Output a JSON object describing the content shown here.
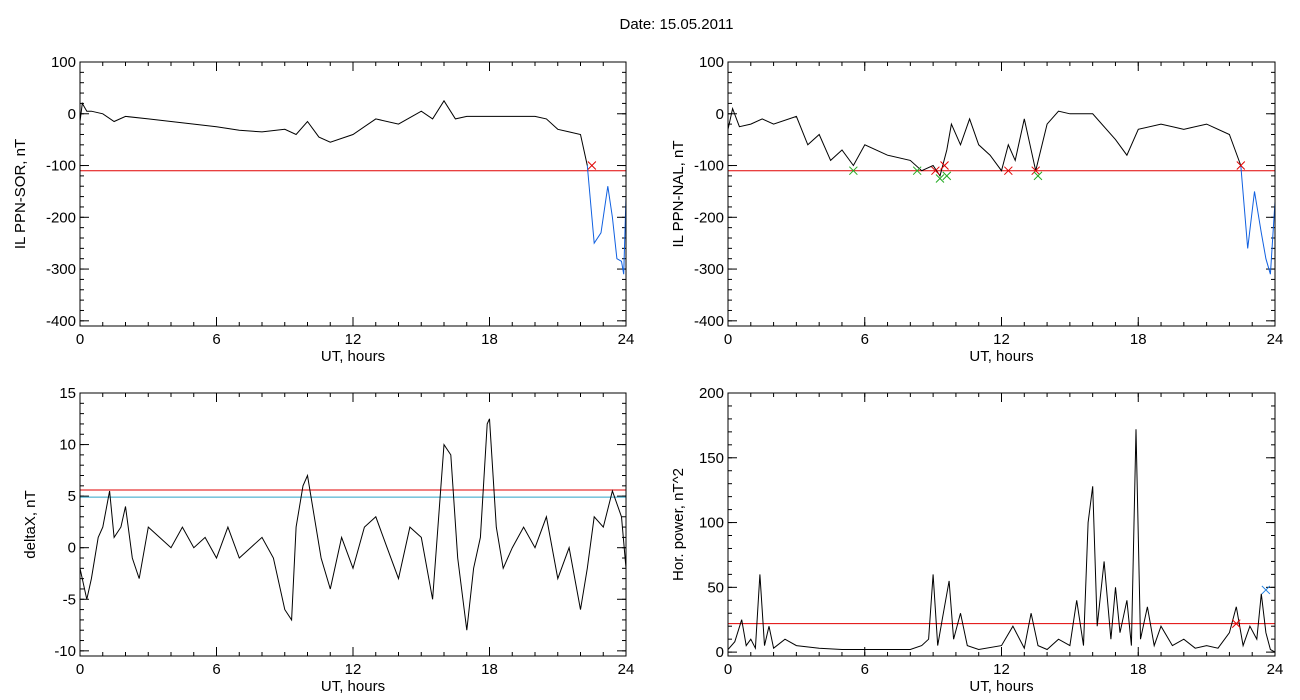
{
  "page_title": "Date:  15.05.2011",
  "colors": {
    "trace": "#000000",
    "threshold_red": "#e00000",
    "threshold_blue": "#2ea3c8",
    "storm_blue": "#1060e0",
    "marker_red": "#e00000",
    "marker_green": "#22aa22",
    "marker_blue": "#2080e0"
  },
  "chart_data": [
    {
      "id": "p1",
      "type": "line",
      "xlabel": "UT, hours",
      "ylabel": "IL PPN-SOR, nT",
      "xlim": [
        0,
        24
      ],
      "ylim": [
        -410,
        100
      ],
      "xticks": [
        0,
        6,
        12,
        18,
        24
      ],
      "yticks": [
        -400,
        -300,
        -200,
        -100,
        0,
        100
      ],
      "thresholds": [
        {
          "y": -110,
          "color": "red"
        }
      ],
      "series": [
        {
          "color": "black",
          "x": [
            0,
            0.1,
            0.3,
            0.5,
            1,
            1.5,
            2,
            3,
            4,
            5,
            6,
            7,
            8,
            9,
            9.5,
            10,
            10.5,
            11,
            12,
            13,
            14,
            15,
            15.5,
            16,
            16.5,
            17,
            18,
            19,
            20,
            20.5,
            21,
            21.5,
            22,
            22.3
          ],
          "y": [
            -15,
            20,
            5,
            5,
            0,
            -15,
            -5,
            -10,
            -15,
            -20,
            -25,
            -32,
            -35,
            -30,
            -40,
            -15,
            -45,
            -55,
            -40,
            -10,
            -20,
            5,
            -10,
            25,
            -10,
            -5,
            -5,
            -5,
            -5,
            -10,
            -30,
            -35,
            -40,
            -100
          ]
        },
        {
          "color": "blue",
          "x": [
            22.3,
            22.6,
            22.9,
            23.2,
            23.4,
            23.6,
            23.8,
            23.9,
            24
          ],
          "y": [
            -100,
            -250,
            -230,
            -140,
            -200,
            -280,
            -285,
            -310,
            -160
          ]
        }
      ],
      "markers": [
        {
          "x": 22.5,
          "y": -100,
          "color": "red"
        }
      ]
    },
    {
      "id": "p2",
      "type": "line",
      "xlabel": "UT, hours",
      "ylabel": "IL PPN-NAL, nT",
      "xlim": [
        0,
        24
      ],
      "ylim": [
        -410,
        100
      ],
      "xticks": [
        0,
        6,
        12,
        18,
        24
      ],
      "yticks": [
        -400,
        -300,
        -200,
        -100,
        0,
        100
      ],
      "thresholds": [
        {
          "y": -110,
          "color": "red"
        }
      ],
      "series": [
        {
          "color": "black",
          "x": [
            0,
            0.2,
            0.5,
            1,
            1.5,
            2,
            3,
            3.5,
            4,
            4.5,
            5,
            5.5,
            6,
            7,
            8,
            8.5,
            9,
            9.3,
            9.6,
            9.8,
            10.2,
            10.6,
            11,
            11.5,
            12,
            12.3,
            12.6,
            13,
            13.5,
            14,
            14.5,
            15,
            16,
            17,
            17.5,
            18,
            19,
            20,
            21,
            22,
            22.5
          ],
          "y": [
            -30,
            10,
            -25,
            -20,
            -10,
            -20,
            -5,
            -60,
            -40,
            -90,
            -70,
            -100,
            -60,
            -80,
            -90,
            -110,
            -100,
            -120,
            -70,
            -20,
            -60,
            -10,
            -60,
            -80,
            -110,
            -60,
            -90,
            -10,
            -110,
            -20,
            5,
            0,
            0,
            -50,
            -80,
            -30,
            -20,
            -30,
            -20,
            -40,
            -100
          ]
        },
        {
          "color": "blue",
          "x": [
            22.5,
            22.8,
            23.1,
            23.4,
            23.6,
            23.8,
            24
          ],
          "y": [
            -100,
            -260,
            -150,
            -230,
            -280,
            -310,
            -170
          ]
        }
      ],
      "markers": [
        {
          "x": 5.5,
          "y": -110,
          "color": "green"
        },
        {
          "x": 8.3,
          "y": -110,
          "color": "green"
        },
        {
          "x": 9.1,
          "y": -110,
          "color": "red"
        },
        {
          "x": 9.3,
          "y": -125,
          "color": "green"
        },
        {
          "x": 9.5,
          "y": -100,
          "color": "red"
        },
        {
          "x": 9.6,
          "y": -120,
          "color": "green"
        },
        {
          "x": 12.3,
          "y": -110,
          "color": "red"
        },
        {
          "x": 13.5,
          "y": -110,
          "color": "red"
        },
        {
          "x": 13.6,
          "y": -120,
          "color": "green"
        },
        {
          "x": 22.5,
          "y": -100,
          "color": "red"
        }
      ]
    },
    {
      "id": "p3",
      "type": "line",
      "xlabel": "UT, hours",
      "ylabel": "deltaX, nT",
      "xlim": [
        0,
        24
      ],
      "ylim": [
        -10.5,
        15
      ],
      "xticks": [
        0,
        6,
        12,
        18,
        24
      ],
      "yticks": [
        -10,
        -5,
        0,
        5,
        10,
        15
      ],
      "thresholds": [
        {
          "y": 5.6,
          "color": "red"
        },
        {
          "y": 4.9,
          "color": "blue"
        }
      ],
      "series": [
        {
          "color": "black",
          "x": [
            0,
            0.3,
            0.5,
            0.8,
            1,
            1.3,
            1.5,
            1.8,
            2,
            2.3,
            2.6,
            3,
            3.5,
            4,
            4.5,
            5,
            5.5,
            6,
            6.5,
            7,
            7.5,
            8,
            8.5,
            9,
            9.3,
            9.5,
            9.8,
            10,
            10.3,
            10.6,
            11,
            11.5,
            12,
            12.5,
            13,
            13.5,
            14,
            14.5,
            15,
            15.5,
            16,
            16.3,
            16.6,
            17,
            17.3,
            17.6,
            17.9,
            18,
            18.3,
            18.6,
            19,
            19.5,
            20,
            20.5,
            21,
            21.5,
            22,
            22.3,
            22.6,
            23,
            23.4,
            23.8,
            24
          ],
          "y": [
            -2,
            -5,
            -3,
            1,
            2,
            5.5,
            1,
            2,
            4,
            -1,
            -3,
            2,
            1,
            0,
            2,
            0,
            1,
            -1,
            2,
            -1,
            0,
            1,
            -1,
            -6,
            -7,
            2,
            6,
            7,
            3,
            -1,
            -4,
            1,
            -2,
            2,
            3,
            0,
            -3,
            2,
            1,
            -5,
            10,
            9,
            -1,
            -8,
            -2,
            1,
            12,
            12.5,
            2,
            -2,
            0,
            2,
            0,
            3,
            -3,
            0,
            -6,
            -2,
            3,
            2,
            5.5,
            3,
            -2
          ]
        }
      ],
      "markers": []
    },
    {
      "id": "p4",
      "type": "line",
      "xlabel": "UT, hours",
      "ylabel": "Hor. power, nT^2",
      "xlim": [
        0,
        24
      ],
      "ylim": [
        -3,
        200
      ],
      "xticks": [
        0,
        6,
        12,
        18,
        24
      ],
      "yticks": [
        0,
        50,
        100,
        150,
        200
      ],
      "thresholds": [
        {
          "y": 22,
          "color": "red"
        }
      ],
      "series": [
        {
          "color": "black",
          "x": [
            0,
            0.3,
            0.6,
            0.8,
            1,
            1.2,
            1.4,
            1.6,
            1.8,
            2,
            2.5,
            3,
            4,
            5,
            6,
            7,
            8,
            8.5,
            8.8,
            9,
            9.2,
            9.4,
            9.7,
            9.9,
            10.2,
            10.5,
            11,
            12,
            12.5,
            13,
            13.3,
            13.6,
            14,
            14.5,
            15,
            15.3,
            15.6,
            15.8,
            16,
            16.2,
            16.5,
            16.8,
            17,
            17.2,
            17.5,
            17.7,
            17.9,
            18.1,
            18.4,
            18.7,
            19,
            19.5,
            20,
            20.5,
            21,
            21.5,
            22,
            22.3,
            22.6,
            22.9,
            23.2,
            23.4,
            23.6,
            23.8,
            24
          ],
          "y": [
            2,
            8,
            25,
            5,
            10,
            3,
            60,
            5,
            20,
            3,
            10,
            5,
            3,
            2,
            2,
            2,
            2,
            5,
            10,
            60,
            5,
            25,
            55,
            10,
            30,
            5,
            2,
            5,
            20,
            3,
            30,
            5,
            2,
            10,
            5,
            40,
            5,
            100,
            128,
            20,
            70,
            10,
            50,
            15,
            40,
            5,
            172,
            10,
            35,
            5,
            20,
            5,
            10,
            3,
            5,
            3,
            15,
            35,
            5,
            20,
            10,
            45,
            15,
            2,
            0
          ]
        }
      ],
      "markers": [
        {
          "x": 22.3,
          "y": 22,
          "color": "red"
        },
        {
          "x": 23.6,
          "y": 48,
          "color": "blue"
        }
      ]
    }
  ]
}
